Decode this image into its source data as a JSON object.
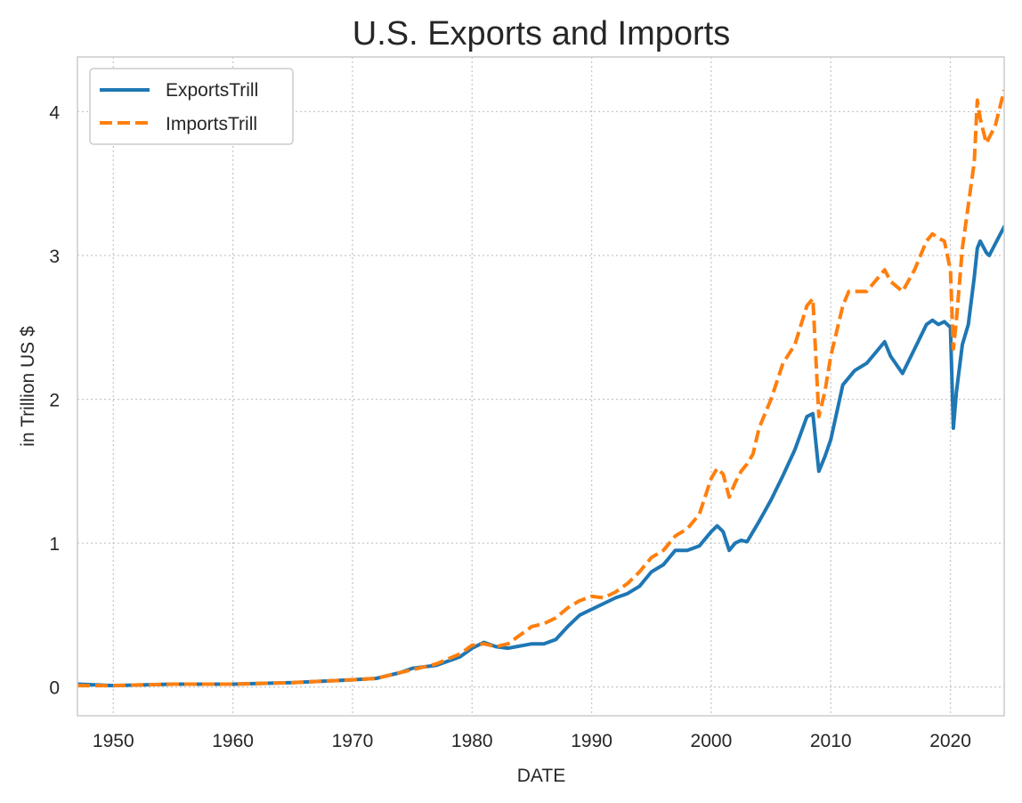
{
  "chart_data": {
    "type": "line",
    "title": "U.S. Exports and Imports",
    "xlabel": "DATE",
    "ylabel": "in Trillion US $",
    "xlim": [
      1947,
      2024.5
    ],
    "ylim": [
      -0.2,
      4.38
    ],
    "xticks": [
      1950,
      1960,
      1970,
      1980,
      1990,
      2000,
      2010,
      2020
    ],
    "yticks": [
      0,
      1,
      2,
      3,
      4
    ],
    "grid": true,
    "grid_style": "dotted",
    "legend_position": "top-left",
    "series": [
      {
        "name": "ExportsTrill",
        "color": "#1f77b4",
        "style": "solid",
        "x": [
          1947,
          1950,
          1955,
          1960,
          1965,
          1970,
          1972,
          1974,
          1975,
          1977,
          1979,
          1980,
          1981,
          1982,
          1983,
          1985,
          1986,
          1987,
          1988,
          1989,
          1990,
          1991,
          1992,
          1993,
          1994,
          1995,
          1996,
          1997,
          1998,
          1999,
          2000,
          2000.5,
          2001,
          2001.5,
          2002,
          2002.5,
          2003,
          2003.5,
          2004,
          2005,
          2006,
          2007,
          2008,
          2008.5,
          2009,
          2009.5,
          2010,
          2011,
          2011.5,
          2012,
          2013,
          2014,
          2014.5,
          2015,
          2016,
          2017,
          2018,
          2018.5,
          2019,
          2019.5,
          2020,
          2020.25,
          2020.5,
          2021,
          2021.5,
          2022,
          2022.25,
          2022.5,
          2023,
          2023.25,
          2023.75,
          2024.5
        ],
        "y": [
          0.02,
          0.01,
          0.02,
          0.02,
          0.03,
          0.05,
          0.06,
          0.1,
          0.13,
          0.15,
          0.21,
          0.27,
          0.31,
          0.28,
          0.27,
          0.3,
          0.3,
          0.33,
          0.42,
          0.5,
          0.54,
          0.58,
          0.62,
          0.65,
          0.7,
          0.8,
          0.85,
          0.95,
          0.95,
          0.98,
          1.08,
          1.12,
          1.08,
          0.95,
          1.0,
          1.02,
          1.01,
          1.08,
          1.15,
          1.3,
          1.47,
          1.65,
          1.88,
          1.9,
          1.5,
          1.6,
          1.72,
          2.1,
          2.15,
          2.2,
          2.25,
          2.35,
          2.4,
          2.3,
          2.18,
          2.35,
          2.52,
          2.55,
          2.52,
          2.54,
          2.5,
          1.8,
          2.05,
          2.38,
          2.52,
          2.85,
          3.05,
          3.1,
          3.02,
          3.0,
          3.08,
          3.2
        ]
      },
      {
        "name": "ImportsTrill",
        "color": "#ff7f0e",
        "style": "dashed",
        "x": [
          1947,
          1950,
          1955,
          1960,
          1965,
          1970,
          1972,
          1974,
          1975,
          1977,
          1979,
          1980,
          1981,
          1982,
          1983,
          1985,
          1986,
          1987,
          1988,
          1989,
          1990,
          1991,
          1992,
          1993,
          1994,
          1995,
          1996,
          1997,
          1998,
          1999,
          2000,
          2000.5,
          2001,
          2001.5,
          2002,
          2002.5,
          2003,
          2003.5,
          2004,
          2005,
          2006,
          2007,
          2008,
          2008.5,
          2009,
          2009.5,
          2010,
          2011,
          2011.5,
          2012,
          2013,
          2014,
          2014.5,
          2015,
          2016,
          2017,
          2018,
          2018.5,
          2019,
          2019.5,
          2020,
          2020.25,
          2020.5,
          2021,
          2021.5,
          2022,
          2022.25,
          2022.5,
          2023,
          2023.25,
          2023.75,
          2024.5
        ],
        "y": [
          0.01,
          0.01,
          0.02,
          0.02,
          0.03,
          0.05,
          0.06,
          0.1,
          0.12,
          0.16,
          0.23,
          0.29,
          0.3,
          0.28,
          0.3,
          0.42,
          0.44,
          0.48,
          0.55,
          0.6,
          0.63,
          0.62,
          0.66,
          0.72,
          0.8,
          0.9,
          0.95,
          1.05,
          1.1,
          1.2,
          1.45,
          1.52,
          1.48,
          1.32,
          1.42,
          1.5,
          1.55,
          1.62,
          1.8,
          2.0,
          2.25,
          2.38,
          2.65,
          2.7,
          1.88,
          2.05,
          2.3,
          2.65,
          2.75,
          2.75,
          2.75,
          2.85,
          2.9,
          2.82,
          2.75,
          2.9,
          3.1,
          3.15,
          3.12,
          3.1,
          2.9,
          2.35,
          2.55,
          3.05,
          3.35,
          3.65,
          4.08,
          3.95,
          3.78,
          3.82,
          3.9,
          4.15
        ]
      }
    ]
  }
}
